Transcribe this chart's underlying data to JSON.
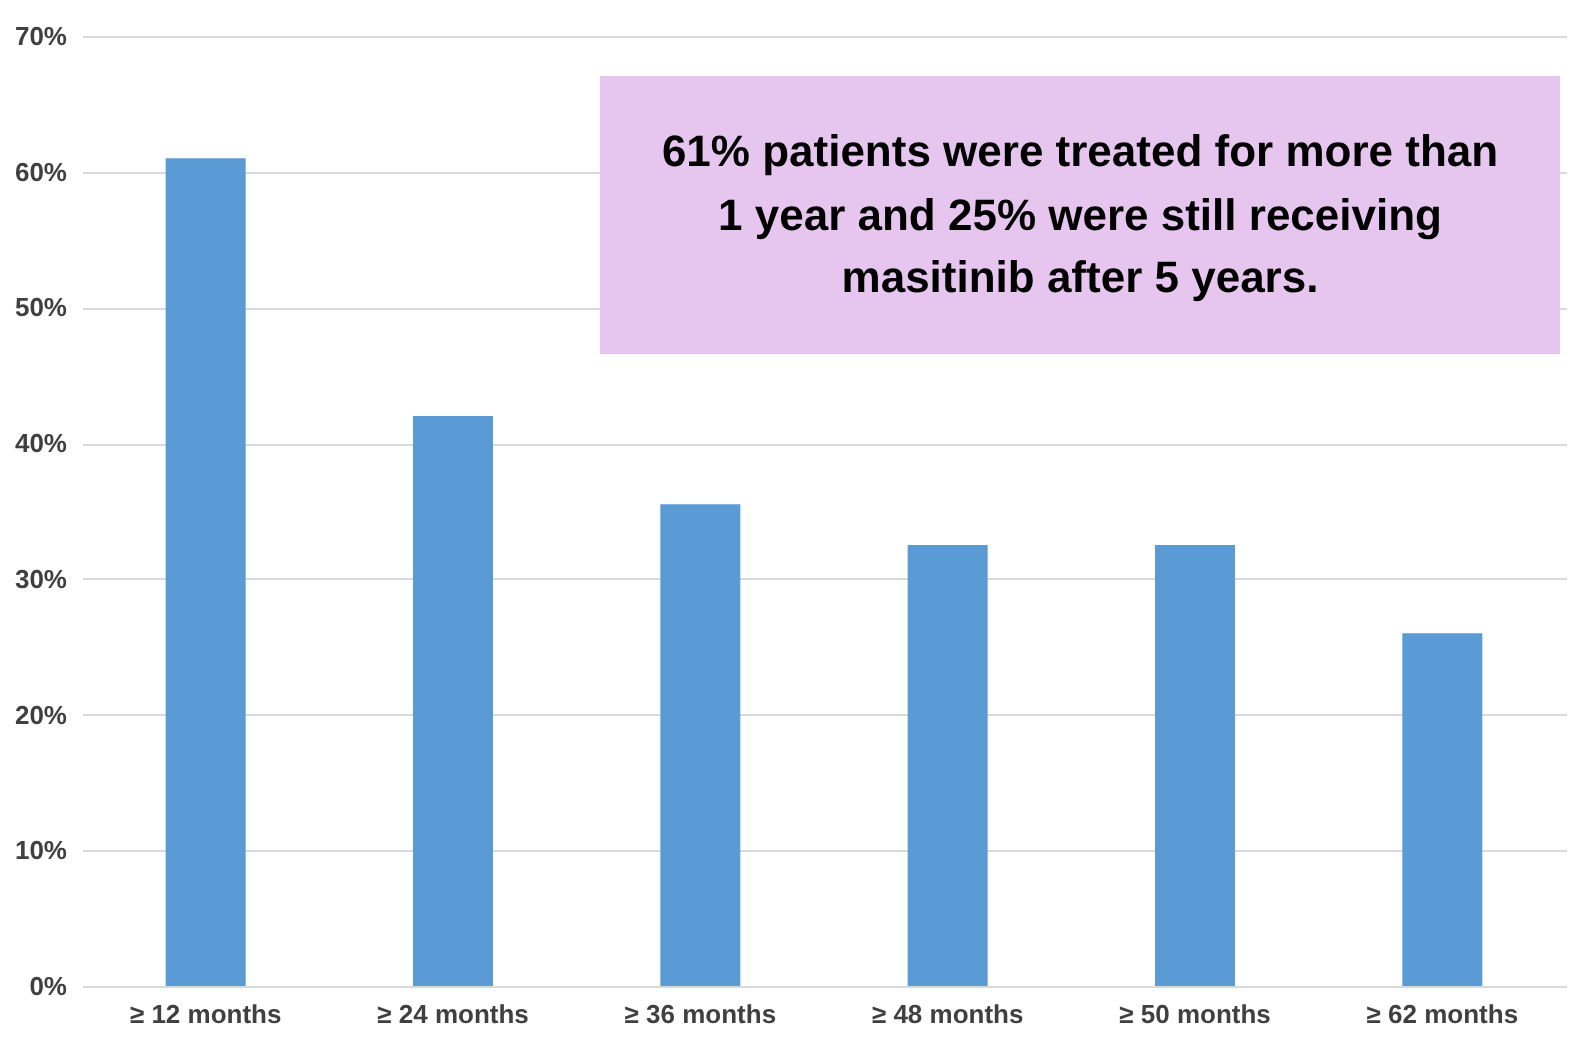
{
  "chart_data": {
    "type": "bar",
    "categories": [
      "≥ 12 months",
      "≥ 24 months",
      "≥ 36 months",
      "≥ 48 months",
      "≥ 50 months",
      "≥ 62 months"
    ],
    "values": [
      61,
      42,
      35.5,
      32.5,
      32.5,
      26
    ],
    "color": "#5b9bd5",
    "ylim": [
      0,
      70
    ],
    "yticks": [
      {
        "value": 0,
        "label": "0%"
      },
      {
        "value": 10,
        "label": "10%"
      },
      {
        "value": 20,
        "label": "20%"
      },
      {
        "value": 30,
        "label": "30%"
      },
      {
        "value": 40,
        "label": "40%"
      },
      {
        "value": 50,
        "label": "50%"
      },
      {
        "value": 60,
        "label": "60%"
      },
      {
        "value": 70,
        "label": "70%"
      }
    ],
    "grid": "y",
    "annotations": [
      "61% patients were treated for more than 1 year and 25% were still receiving masitinib after 5 years."
    ]
  }
}
